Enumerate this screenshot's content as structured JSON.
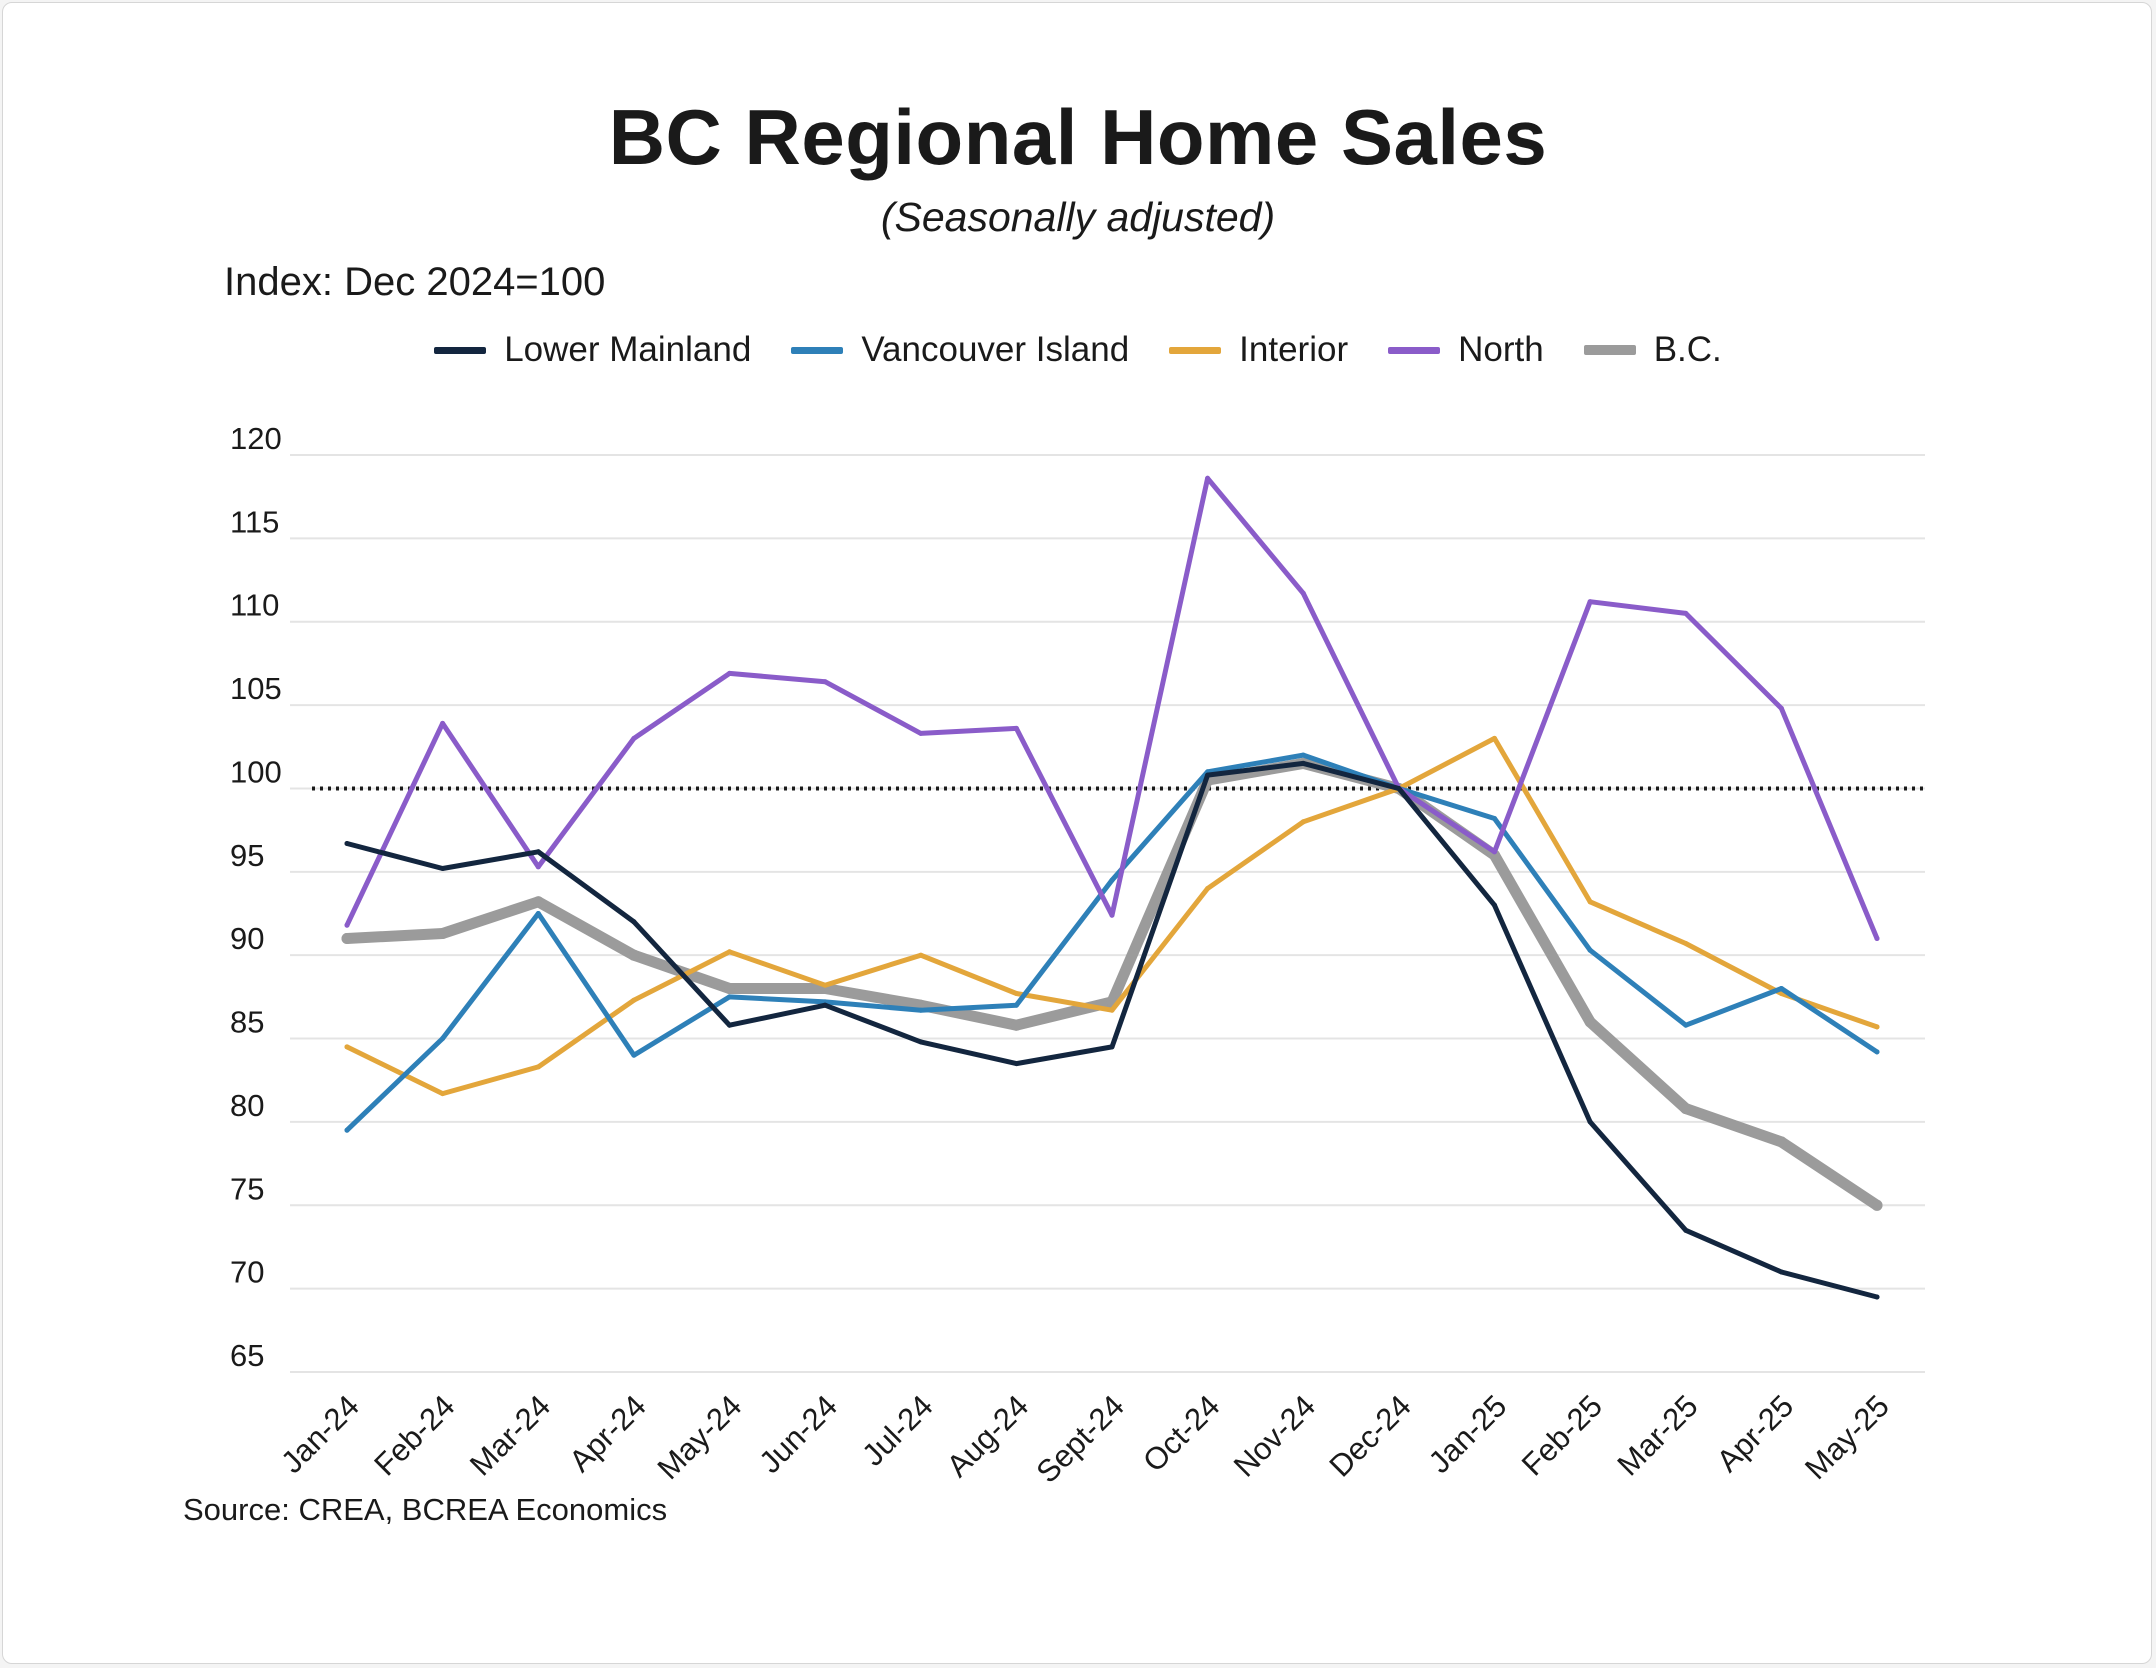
{
  "title": "BC Regional Home Sales",
  "subtitle": "(Seasonally adjusted)",
  "source": "Source: CREA, BCREA Economics",
  "chart_data": {
    "type": "line",
    "title": "BC Regional Home Sales",
    "subtitle": "(Seasonally adjusted)",
    "ylabel": "Index: Dec 2024=100",
    "xlabel": "",
    "ylim": [
      65,
      120
    ],
    "yticks": [
      120,
      115,
      110,
      105,
      100,
      95,
      90,
      85,
      80,
      75,
      70,
      65
    ],
    "reference_line": 100,
    "grid": true,
    "legend_position": "top",
    "categories": [
      "Jan-24",
      "Feb-24",
      "Mar-24",
      "Apr-24",
      "May-24",
      "Jun-24",
      "Jul-24",
      "Aug-24",
      "Sept-24",
      "Oct-24",
      "Nov-24",
      "Dec-24",
      "Jan-25",
      "Feb-25",
      "Mar-25",
      "Apr-25",
      "May-25"
    ],
    "series": [
      {
        "name": "Lower Mainland",
        "color": "#13263f",
        "values": [
          96.7,
          95.2,
          96.2,
          92.0,
          85.8,
          87.0,
          84.8,
          83.5,
          84.5,
          100.8,
          101.5,
          100.0,
          93.0,
          80.0,
          73.5,
          71.0,
          69.5
        ]
      },
      {
        "name": "Vancouver Island",
        "color": "#2e80b8",
        "values": [
          79.5,
          85.0,
          92.5,
          84.0,
          87.5,
          87.2,
          86.7,
          87.0,
          94.5,
          101.0,
          102.0,
          100.0,
          98.2,
          90.3,
          85.8,
          88.0,
          84.2
        ]
      },
      {
        "name": "Interior",
        "color": "#e3a63b",
        "values": [
          84.5,
          81.7,
          83.3,
          87.3,
          90.2,
          88.2,
          90.0,
          87.7,
          86.7,
          94.0,
          98.0,
          100.0,
          103.0,
          93.2,
          90.7,
          87.7,
          85.7
        ]
      },
      {
        "name": "North",
        "color": "#8a5cc9",
        "values": [
          91.8,
          103.9,
          95.3,
          103.0,
          106.9,
          106.4,
          103.3,
          103.6,
          92.4,
          118.6,
          111.7,
          100.0,
          96.2,
          111.2,
          110.5,
          104.8,
          91.0
        ]
      },
      {
        "name": "B.C.",
        "color": "#9b9b9b",
        "values": [
          91.0,
          91.3,
          93.2,
          90.0,
          88.0,
          88.0,
          87.0,
          85.8,
          87.2,
          100.5,
          101.5,
          100.0,
          96.0,
          86.0,
          80.8,
          78.8,
          75.0
        ]
      }
    ]
  }
}
